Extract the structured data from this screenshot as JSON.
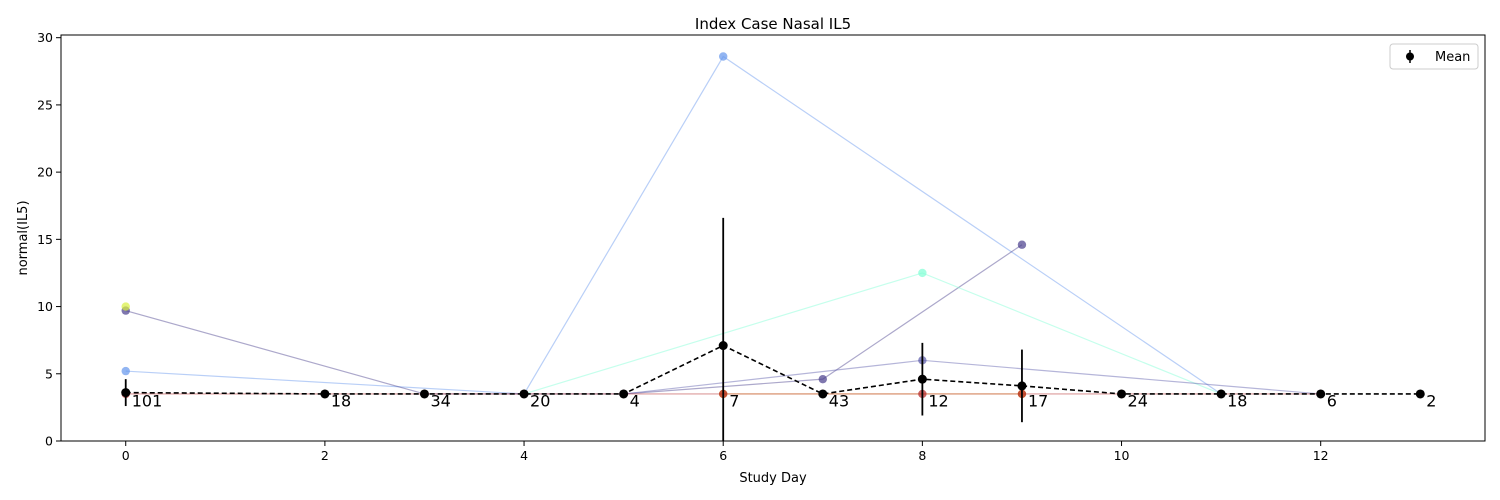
{
  "chart_data": {
    "type": "line",
    "title": "Index Case Nasal IL5",
    "xlabel": "Study Day",
    "ylabel": "normal(IL5)",
    "xlim": [
      -0.65,
      13.65
    ],
    "ylim": [
      0,
      30.2
    ],
    "xticks": [
      0,
      2,
      4,
      6,
      8,
      10,
      12
    ],
    "yticks": [
      0,
      5,
      10,
      15,
      20,
      25,
      30
    ],
    "grid": false,
    "legend": {
      "placement": "top-right",
      "entries": [
        "Mean"
      ]
    },
    "individual_series": [
      {
        "color": "#6495ed",
        "points": [
          [
            0,
            5.2
          ],
          [
            4,
            3.5
          ],
          [
            6,
            28.6
          ],
          [
            11,
            3.5
          ]
        ]
      },
      {
        "color": "#483d8b",
        "points": [
          [
            0,
            9.7
          ],
          [
            3,
            3.5
          ],
          [
            5,
            3.5
          ],
          [
            7,
            4.6
          ],
          [
            9,
            14.6
          ]
        ]
      },
      {
        "color": "#7fffd4",
        "points": [
          [
            4,
            3.5
          ],
          [
            8,
            12.5
          ],
          [
            11,
            3.5
          ]
        ]
      },
      {
        "color": "#5a5aaa",
        "points": [
          [
            5,
            3.5
          ],
          [
            8,
            6.0
          ],
          [
            12,
            3.5
          ]
        ]
      },
      {
        "color": "#d8f040",
        "points": [
          [
            0,
            10.0
          ]
        ]
      },
      {
        "color": "#e8b020",
        "points": [
          [
            6,
            3.5
          ],
          [
            9,
            3.5
          ]
        ]
      },
      {
        "color": "#b22222",
        "points": [
          [
            0,
            3.5
          ],
          [
            2,
            3.5
          ],
          [
            3,
            3.5
          ],
          [
            4,
            3.5
          ],
          [
            5,
            3.5
          ],
          [
            6,
            3.5
          ],
          [
            7,
            3.5
          ],
          [
            8,
            3.5
          ],
          [
            9,
            3.5
          ],
          [
            10,
            3.5
          ],
          [
            11,
            3.5
          ],
          [
            12,
            3.5
          ]
        ]
      }
    ],
    "mean_series": {
      "name": "Mean",
      "color": "#000000",
      "x": [
        0,
        2,
        3,
        4,
        5,
        6,
        7,
        8,
        9,
        10,
        11,
        12,
        13
      ],
      "y": [
        3.6,
        3.5,
        3.5,
        3.5,
        3.5,
        7.1,
        3.5,
        4.6,
        4.1,
        3.5,
        3.5,
        3.5,
        3.5
      ],
      "error": [
        1.0,
        0,
        0,
        0,
        0,
        9.5,
        0,
        2.7,
        2.7,
        0,
        0,
        0,
        0
      ]
    },
    "counts": [
      {
        "x": 0,
        "label": "101"
      },
      {
        "x": 2,
        "label": "18"
      },
      {
        "x": 3,
        "label": "34"
      },
      {
        "x": 4,
        "label": "20"
      },
      {
        "x": 5,
        "label": "4"
      },
      {
        "x": 6,
        "label": "7"
      },
      {
        "x": 7,
        "label": "43"
      },
      {
        "x": 8,
        "label": "12"
      },
      {
        "x": 9,
        "label": "17"
      },
      {
        "x": 10,
        "label": "24"
      },
      {
        "x": 11,
        "label": "18"
      },
      {
        "x": 12,
        "label": "6"
      },
      {
        "x": 13,
        "label": "2"
      }
    ]
  }
}
